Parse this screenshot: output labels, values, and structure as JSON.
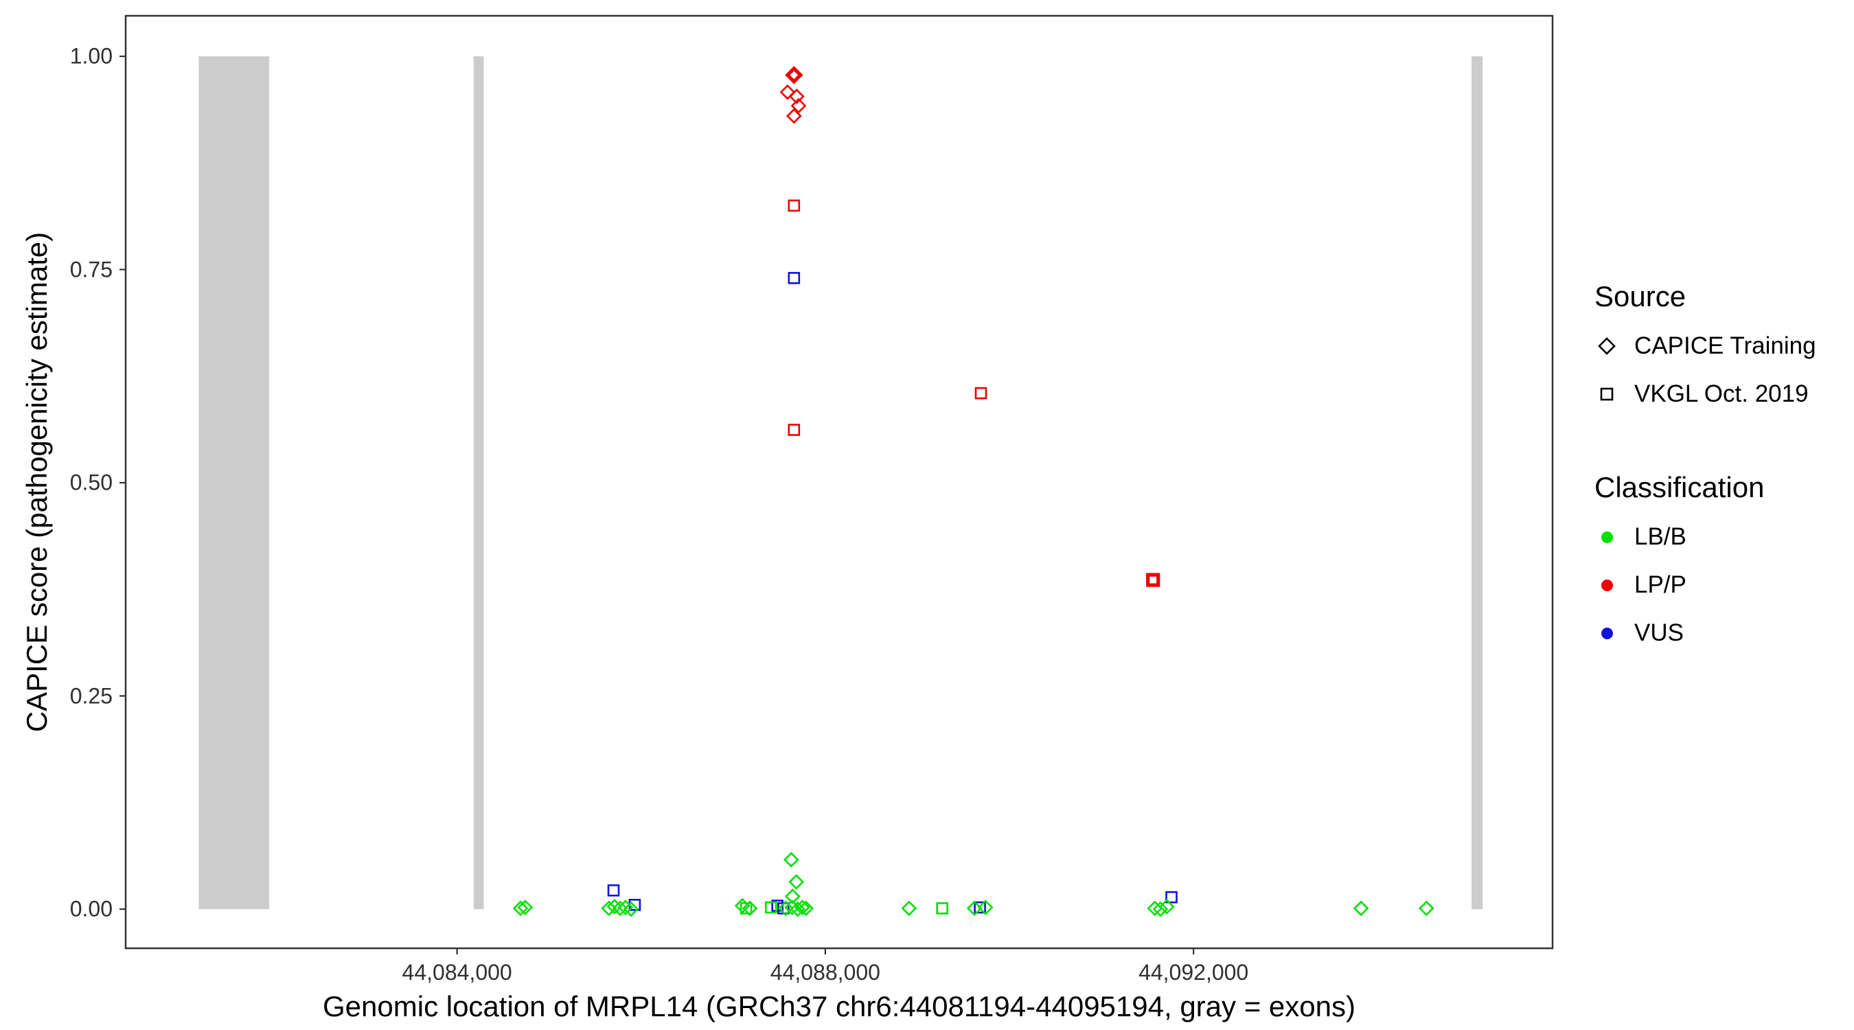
{
  "colors": {
    "exon": "#CCCCCC",
    "panel_border": "#333333",
    "tick": "#333333",
    "classification": {
      "LB/B": "#00E000",
      "LP/P": "#EE0000",
      "VUS": "#1111DD"
    }
  },
  "legend": {
    "source": {
      "title": "Source",
      "items": [
        {
          "label": "CAPICE Training",
          "shape": "diamond"
        },
        {
          "label": "VKGL Oct. 2019",
          "shape": "square"
        }
      ]
    },
    "classification": {
      "title": "Classification",
      "items": [
        {
          "label": "LB/B",
          "color": "#00E000"
        },
        {
          "label": "LP/P",
          "color": "#EE0000"
        },
        {
          "label": "VUS",
          "color": "#1111DD"
        }
      ]
    }
  },
  "chart_data": {
    "type": "scatter",
    "title": "",
    "xlabel": "Genomic location of MRPL14 (GRCh37 chr6:44081194-44095194, gray = exons)",
    "ylabel": "CAPICE score (pathogenicity estimate)",
    "xlim": [
      44080400,
      44095900
    ],
    "ylim": [
      0,
      1
    ],
    "grid": false,
    "legend_position": "right",
    "x_ticks": [
      {
        "value": 44084000,
        "label": "44,084,000"
      },
      {
        "value": 44088000,
        "label": "44,088,000"
      },
      {
        "value": 44092000,
        "label": "44,092,000"
      }
    ],
    "y_ticks": [
      {
        "value": 0.0,
        "label": "0.00"
      },
      {
        "value": 0.25,
        "label": "0.25"
      },
      {
        "value": 0.5,
        "label": "0.50"
      },
      {
        "value": 0.75,
        "label": "0.75"
      },
      {
        "value": 1.0,
        "label": "1.00"
      }
    ],
    "shape_by_source": {
      "CAPICE Training": "diamond",
      "VKGL Oct. 2019": "square"
    },
    "exons": [
      {
        "start": 44081194,
        "end": 44081960
      },
      {
        "start": 44084180,
        "end": 44084290
      },
      {
        "start": 44095020,
        "end": 44095140
      }
    ],
    "points": [
      {
        "x": 44087660,
        "y": 0.978,
        "source": "CAPICE Training",
        "classification": "LP/P",
        "w": 2
      },
      {
        "x": 44087590,
        "y": 0.958,
        "source": "CAPICE Training",
        "classification": "LP/P"
      },
      {
        "x": 44087690,
        "y": 0.953,
        "source": "CAPICE Training",
        "classification": "LP/P"
      },
      {
        "x": 44087710,
        "y": 0.942,
        "source": "CAPICE Training",
        "classification": "LP/P"
      },
      {
        "x": 44087660,
        "y": 0.93,
        "source": "CAPICE Training",
        "classification": "LP/P"
      },
      {
        "x": 44087660,
        "y": 0.825,
        "source": "VKGL Oct. 2019",
        "classification": "LP/P"
      },
      {
        "x": 44087660,
        "y": 0.74,
        "source": "VKGL Oct. 2019",
        "classification": "VUS"
      },
      {
        "x": 44087660,
        "y": 0.562,
        "source": "VKGL Oct. 2019",
        "classification": "LP/P"
      },
      {
        "x": 44089690,
        "y": 0.605,
        "source": "VKGL Oct. 2019",
        "classification": "LP/P"
      },
      {
        "x": 44091560,
        "y": 0.386,
        "source": "VKGL Oct. 2019",
        "classification": "LP/P",
        "w": 2
      },
      {
        "x": 44085700,
        "y": 0.022,
        "source": "VKGL Oct. 2019",
        "classification": "VUS"
      },
      {
        "x": 44085930,
        "y": 0.005,
        "source": "VKGL Oct. 2019",
        "classification": "VUS"
      },
      {
        "x": 44087480,
        "y": 0.004,
        "source": "VKGL Oct. 2019",
        "classification": "VUS"
      },
      {
        "x": 44087545,
        "y": 0.001,
        "source": "VKGL Oct. 2019",
        "classification": "VUS"
      },
      {
        "x": 44089680,
        "y": 0.002,
        "source": "VKGL Oct. 2019",
        "classification": "VUS"
      },
      {
        "x": 44091760,
        "y": 0.014,
        "source": "VKGL Oct. 2019",
        "classification": "VUS"
      },
      {
        "x": 44087140,
        "y": 0.001,
        "source": "VKGL Oct. 2019",
        "classification": "LB/B"
      },
      {
        "x": 44087410,
        "y": 0.002,
        "source": "VKGL Oct. 2019",
        "classification": "LB/B"
      },
      {
        "x": 44089270,
        "y": 0.001,
        "source": "VKGL Oct. 2019",
        "classification": "LB/B"
      },
      {
        "x": 44084690,
        "y": 0.001,
        "source": "CAPICE Training",
        "classification": "LB/B"
      },
      {
        "x": 44084740,
        "y": 0.002,
        "source": "CAPICE Training",
        "classification": "LB/B"
      },
      {
        "x": 44085650,
        "y": 0.001,
        "source": "CAPICE Training",
        "classification": "LB/B"
      },
      {
        "x": 44085710,
        "y": 0.003,
        "source": "CAPICE Training",
        "classification": "LB/B"
      },
      {
        "x": 44085770,
        "y": 0.001,
        "source": "CAPICE Training",
        "classification": "LB/B"
      },
      {
        "x": 44085830,
        "y": 0.002,
        "source": "CAPICE Training",
        "classification": "LB/B"
      },
      {
        "x": 44085890,
        "y": 0.0,
        "source": "CAPICE Training",
        "classification": "LB/B"
      },
      {
        "x": 44087100,
        "y": 0.004,
        "source": "CAPICE Training",
        "classification": "LB/B"
      },
      {
        "x": 44087180,
        "y": 0.001,
        "source": "CAPICE Training",
        "classification": "LB/B"
      },
      {
        "x": 44087570,
        "y": 0.001,
        "source": "CAPICE Training",
        "classification": "LB/B"
      },
      {
        "x": 44087630,
        "y": 0.058,
        "source": "CAPICE Training",
        "classification": "LB/B"
      },
      {
        "x": 44087645,
        "y": 0.015,
        "source": "CAPICE Training",
        "classification": "LB/B"
      },
      {
        "x": 44087685,
        "y": 0.032,
        "source": "CAPICE Training",
        "classification": "LB/B"
      },
      {
        "x": 44087640,
        "y": 0.002,
        "source": "CAPICE Training",
        "classification": "LB/B"
      },
      {
        "x": 44087700,
        "y": 0.0,
        "source": "CAPICE Training",
        "classification": "LB/B"
      },
      {
        "x": 44087750,
        "y": 0.002,
        "source": "CAPICE Training",
        "classification": "LB/B"
      },
      {
        "x": 44087790,
        "y": 0.001,
        "source": "CAPICE Training",
        "classification": "LB/B"
      },
      {
        "x": 44088910,
        "y": 0.001,
        "source": "CAPICE Training",
        "classification": "LB/B"
      },
      {
        "x": 44089620,
        "y": 0.001,
        "source": "CAPICE Training",
        "classification": "LB/B"
      },
      {
        "x": 44089740,
        "y": 0.002,
        "source": "CAPICE Training",
        "classification": "LB/B"
      },
      {
        "x": 44091580,
        "y": 0.001,
        "source": "CAPICE Training",
        "classification": "LB/B"
      },
      {
        "x": 44091640,
        "y": 0.0,
        "source": "CAPICE Training",
        "classification": "LB/B"
      },
      {
        "x": 44091710,
        "y": 0.003,
        "source": "CAPICE Training",
        "classification": "LB/B"
      },
      {
        "x": 44093820,
        "y": 0.001,
        "source": "CAPICE Training",
        "classification": "LB/B"
      },
      {
        "x": 44094530,
        "y": 0.001,
        "source": "CAPICE Training",
        "classification": "LB/B"
      }
    ]
  }
}
